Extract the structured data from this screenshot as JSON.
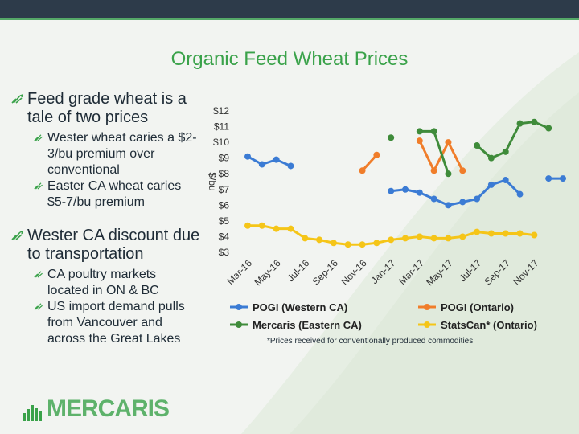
{
  "slide": {
    "title": "Organic Feed Wheat Prices",
    "bullets": [
      {
        "text": "Feed grade wheat is a tale of two prices",
        "sub": [
          "Wester wheat caries a $2-3/bu premium over conventional",
          "Easter CA wheat caries $5-7/bu premium"
        ]
      },
      {
        "text": "Wester CA discount due to transportation",
        "sub": [
          "CA poultry markets located in ON & BC",
          "US import demand pulls from Vancouver and across the Great Lakes"
        ]
      }
    ],
    "logo_text": "MERCARIS",
    "footnote": "*Prices received for conventionally produced commodities",
    "colors": {
      "accent": "#3aa24a",
      "topbar": "#2d3b4a",
      "bullet_icon": "#3aa24a"
    },
    "icons": {
      "bullet": "seedling-icon"
    }
  },
  "chart_data": {
    "type": "line",
    "title": "",
    "xlabel": "",
    "ylabel": "$/bu",
    "ylim": [
      3,
      12
    ],
    "yticks": [
      "$3",
      "$4",
      "$5",
      "$6",
      "$7",
      "$8",
      "$9",
      "$10",
      "$11",
      "$12"
    ],
    "x_tick_labels": [
      "Mar-16",
      "May-16",
      "Jul-16",
      "Sep-16",
      "Nov-16",
      "Jan-17",
      "Mar-17",
      "May-17",
      "Jul-17",
      "Sep-17",
      "Nov-17"
    ],
    "x": [
      "Mar-16",
      "Apr-16",
      "May-16",
      "Jun-16",
      "Jul-16",
      "Aug-16",
      "Sep-16",
      "Oct-16",
      "Nov-16",
      "Dec-16",
      "Jan-17",
      "Feb-17",
      "Mar-17",
      "Apr-17",
      "May-17",
      "Jun-17",
      "Jul-17",
      "Aug-17",
      "Sep-17",
      "Oct-17",
      "Nov-17",
      "Dec-17",
      "Jan-18"
    ],
    "legend_position": "bottom",
    "grid": false,
    "series": [
      {
        "name": "POGI (Western CA)",
        "color": "#3b7bd4",
        "values": [
          9.1,
          8.6,
          8.9,
          8.5,
          null,
          null,
          null,
          null,
          null,
          null,
          6.9,
          7.0,
          6.8,
          6.4,
          6.0,
          6.2,
          6.4,
          7.3,
          7.6,
          6.7,
          null,
          7.7,
          7.7
        ]
      },
      {
        "name": "POGI (Ontario)",
        "color": "#f07d2a",
        "values": [
          null,
          null,
          null,
          null,
          null,
          null,
          null,
          null,
          8.2,
          9.2,
          null,
          null,
          10.1,
          8.2,
          10.0,
          8.2,
          null,
          null,
          null,
          null,
          null,
          null,
          null
        ]
      },
      {
        "name": "Mercaris (Eastern CA)",
        "color": "#3f8b3a",
        "values": [
          null,
          null,
          null,
          null,
          null,
          null,
          null,
          null,
          null,
          null,
          10.3,
          null,
          10.7,
          10.7,
          8.0,
          null,
          9.8,
          9.0,
          9.4,
          11.2,
          11.3,
          10.9,
          null
        ]
      },
      {
        "name": "StatsCan* (Ontario)",
        "color": "#f5c518",
        "values": [
          4.7,
          4.7,
          4.5,
          4.5,
          3.9,
          3.8,
          3.6,
          3.5,
          3.5,
          3.6,
          3.8,
          3.9,
          4.0,
          3.9,
          3.9,
          4.0,
          4.3,
          4.2,
          4.2,
          4.2,
          4.1,
          null,
          null
        ]
      }
    ]
  }
}
